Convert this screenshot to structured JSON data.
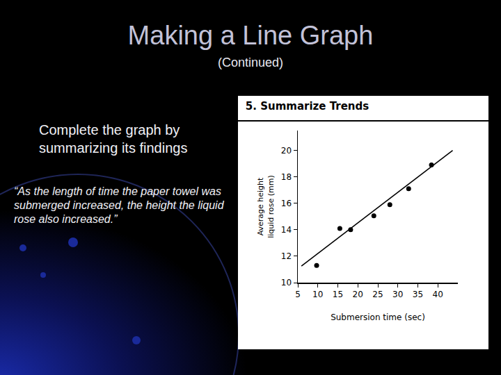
{
  "slide": {
    "title": "Making a Line Graph",
    "subtitle": "(Continued)",
    "instruction": "Complete the graph by summarizing its findings",
    "summary": "“As the length of time the paper towel was submerged increased, the height the liquid rose also increased.”"
  },
  "chart_data": {
    "type": "scatter",
    "title": "5. Summarize Trends",
    "x_label": "Submersion time (sec)",
    "y_label": "Average height\nliquid rose (mm)",
    "series": [
      {
        "type": "scatter",
        "marker": "circle",
        "color": "#000000",
        "x": [
          9.7,
          15.5,
          18.2,
          24,
          28,
          32.7,
          38.4
        ],
        "values": [
          11.3,
          14.1,
          14.0,
          15.05,
          15.9,
          17.1,
          18.9
        ]
      },
      {
        "type": "line",
        "line_style": "solid",
        "color": "#000000",
        "x": [
          5.9,
          43.7
        ],
        "values": [
          11.25,
          20
        ]
      }
    ],
    "xlim": [
      5,
      45
    ],
    "ylim": [
      10,
      21.5
    ],
    "xticks": [
      5,
      10,
      15,
      20,
      25,
      30,
      35,
      40
    ],
    "yticks": [
      10,
      12,
      14,
      16,
      18,
      20
    ],
    "grid": false
  }
}
